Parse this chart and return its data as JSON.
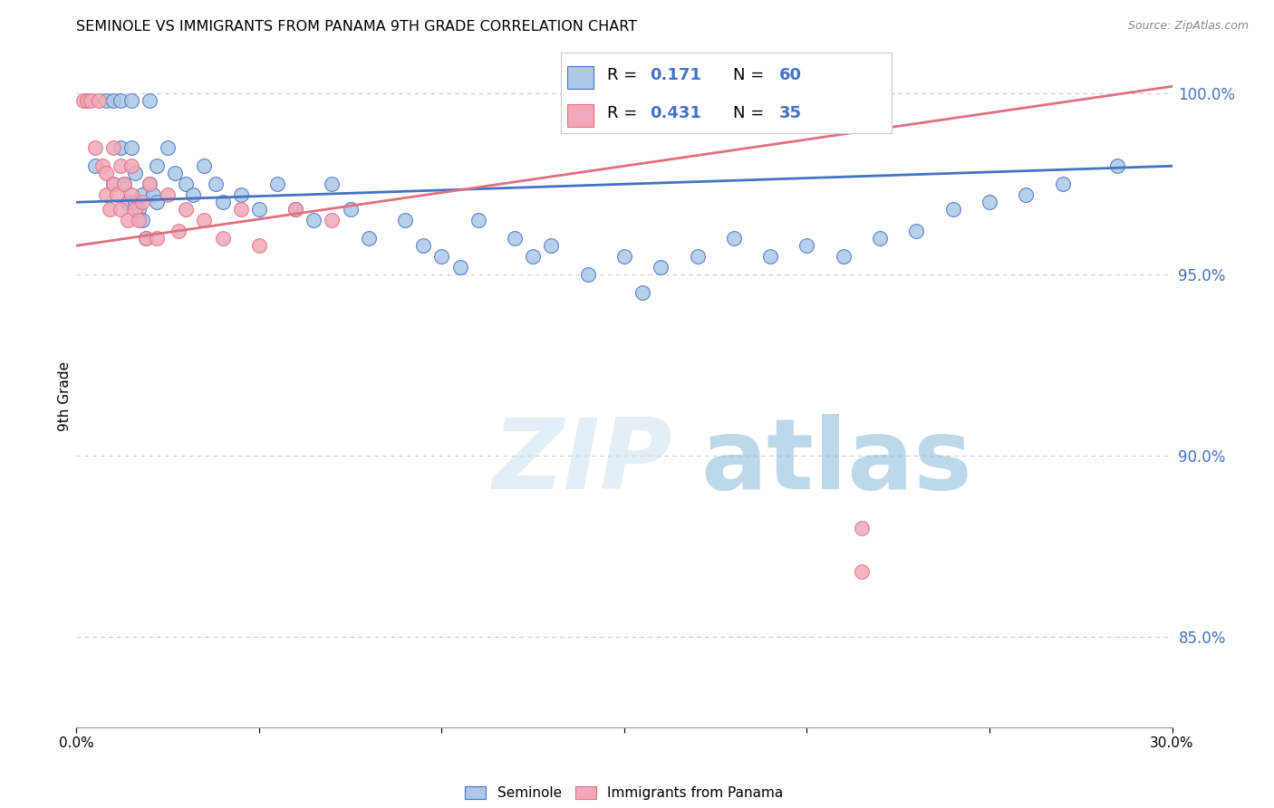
{
  "title": "SEMINOLE VS IMMIGRANTS FROM PANAMA 9TH GRADE CORRELATION CHART",
  "source": "Source: ZipAtlas.com",
  "ylabel": "9th Grade",
  "ytick_values": [
    0.85,
    0.9,
    0.95,
    1.0
  ],
  "ymin": 0.825,
  "ymax": 1.008,
  "xmin": 0.0,
  "xmax": 0.3,
  "legend_blue_R": "0.171",
  "legend_blue_N": "60",
  "legend_pink_R": "0.431",
  "legend_pink_N": "35",
  "blue_color": "#adc8e8",
  "pink_color": "#f2a8b8",
  "blue_line_color": "#4472c4",
  "pink_line_color": "#e07080",
  "seminole_label": "Seminole",
  "panama_label": "Immigrants from Panama",
  "blue_scatter_x": [
    0.005,
    0.008,
    0.01,
    0.01,
    0.012,
    0.012,
    0.013,
    0.014,
    0.015,
    0.015,
    0.016,
    0.016,
    0.017,
    0.018,
    0.018,
    0.019,
    0.02,
    0.02,
    0.021,
    0.022,
    0.022,
    0.025,
    0.027,
    0.03,
    0.032,
    0.035,
    0.038,
    0.04,
    0.045,
    0.05,
    0.055,
    0.06,
    0.065,
    0.07,
    0.075,
    0.08,
    0.09,
    0.095,
    0.1,
    0.105,
    0.11,
    0.12,
    0.125,
    0.13,
    0.14,
    0.15,
    0.155,
    0.16,
    0.17,
    0.18,
    0.19,
    0.2,
    0.21,
    0.22,
    0.23,
    0.24,
    0.25,
    0.26,
    0.27,
    0.285
  ],
  "blue_scatter_y": [
    0.98,
    0.998,
    0.998,
    0.975,
    0.998,
    0.985,
    0.975,
    0.97,
    0.998,
    0.985,
    0.978,
    0.97,
    0.968,
    0.972,
    0.965,
    0.96,
    0.998,
    0.975,
    0.972,
    0.98,
    0.97,
    0.985,
    0.978,
    0.975,
    0.972,
    0.98,
    0.975,
    0.97,
    0.972,
    0.968,
    0.975,
    0.968,
    0.965,
    0.975,
    0.968,
    0.96,
    0.965,
    0.958,
    0.955,
    0.952,
    0.965,
    0.96,
    0.955,
    0.958,
    0.95,
    0.955,
    0.945,
    0.952,
    0.955,
    0.96,
    0.955,
    0.958,
    0.955,
    0.96,
    0.962,
    0.968,
    0.97,
    0.972,
    0.975,
    0.98
  ],
  "pink_scatter_x": [
    0.002,
    0.003,
    0.004,
    0.005,
    0.006,
    0.007,
    0.008,
    0.008,
    0.009,
    0.01,
    0.01,
    0.011,
    0.012,
    0.012,
    0.013,
    0.014,
    0.015,
    0.015,
    0.016,
    0.017,
    0.018,
    0.019,
    0.02,
    0.022,
    0.025,
    0.028,
    0.03,
    0.035,
    0.04,
    0.045,
    0.05,
    0.06,
    0.07,
    0.215,
    0.215
  ],
  "pink_scatter_y": [
    0.998,
    0.998,
    0.998,
    0.985,
    0.998,
    0.98,
    0.978,
    0.972,
    0.968,
    0.985,
    0.975,
    0.972,
    0.98,
    0.968,
    0.975,
    0.965,
    0.98,
    0.972,
    0.968,
    0.965,
    0.97,
    0.96,
    0.975,
    0.96,
    0.972,
    0.962,
    0.968,
    0.965,
    0.96,
    0.968,
    0.958,
    0.968,
    0.965,
    0.88,
    0.868
  ]
}
